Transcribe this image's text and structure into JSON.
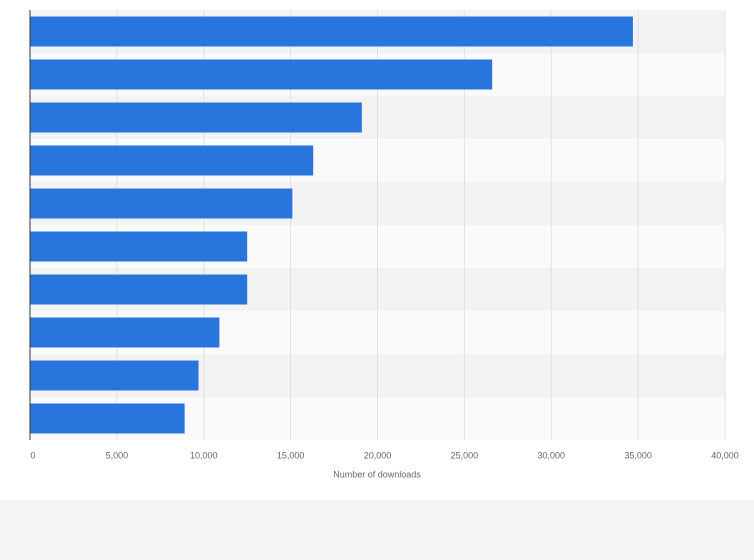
{
  "chart_data": {
    "type": "bar",
    "orientation": "horizontal",
    "categories": [
      null,
      null,
      null,
      null,
      null,
      null,
      null,
      null,
      null,
      null
    ],
    "values": [
      34700,
      26600,
      19100,
      16300,
      15100,
      12500,
      12500,
      10900,
      9700,
      8900
    ],
    "color": "#2876dd",
    "x_label": "Number of downloads",
    "xlim": [
      0,
      40000
    ],
    "xticks": [
      0,
      {
        "value": 5000,
        "label": "5,000"
      },
      {
        "value": 10000,
        "label": "10,000"
      },
      {
        "value": 15000,
        "label": "15,000"
      },
      {
        "value": 20000,
        "label": "20,000"
      },
      {
        "value": 25000,
        "label": "25,000"
      },
      {
        "value": 30000,
        "label": "30,000"
      },
      {
        "value": 35000,
        "label": "35,000"
      },
      {
        "value": 40000,
        "label": "40,000"
      }
    ],
    "grid": true
  }
}
